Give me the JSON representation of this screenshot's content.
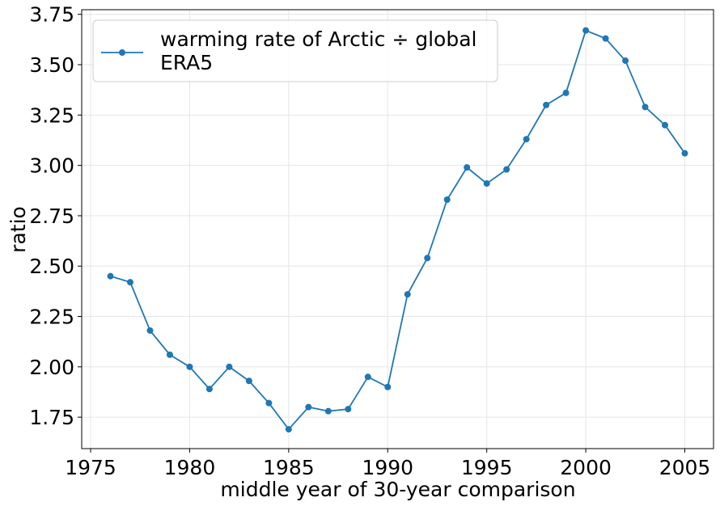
{
  "chart_data": {
    "type": "line",
    "title": "",
    "xlabel": "middle year of 30-year comparison",
    "ylabel": "ratio",
    "xlim": [
      1974.55,
      2006.45
    ],
    "ylim": [
      1.594,
      3.773
    ],
    "xticks": [
      1975,
      1980,
      1985,
      1990,
      1995,
      2000,
      2005
    ],
    "yticks": [
      1.75,
      2.0,
      2.25,
      2.5,
      2.75,
      3.0,
      3.25,
      3.5,
      3.75
    ],
    "xtick_labels": [
      "1975",
      "1980",
      "1985",
      "1990",
      "1995",
      "2000",
      "2005"
    ],
    "ytick_labels": [
      "1.75",
      "2.00",
      "2.25",
      "2.50",
      "2.75",
      "3.00",
      "3.25",
      "3.50",
      "3.75"
    ],
    "grid": true,
    "legend_position": "top-left",
    "series": [
      {
        "name": "warming rate of Arctic ÷ global\nERA5",
        "color": "#1f77b4",
        "marker": "circle",
        "x": [
          1976,
          1977,
          1978,
          1979,
          1980,
          1981,
          1982,
          1983,
          1984,
          1985,
          1986,
          1987,
          1988,
          1989,
          1990,
          1991,
          1992,
          1993,
          1994,
          1995,
          1996,
          1997,
          1998,
          1999,
          2000,
          2001,
          2002,
          2003,
          2004,
          2005
        ],
        "y": [
          2.45,
          2.42,
          2.18,
          2.06,
          2.0,
          1.89,
          2.0,
          1.93,
          1.82,
          1.69,
          1.8,
          1.78,
          1.79,
          1.95,
          1.9,
          2.36,
          2.54,
          2.83,
          2.99,
          2.91,
          2.98,
          3.13,
          3.3,
          3.36,
          3.67,
          3.63,
          3.52,
          3.29,
          3.2,
          3.06
        ]
      }
    ]
  }
}
